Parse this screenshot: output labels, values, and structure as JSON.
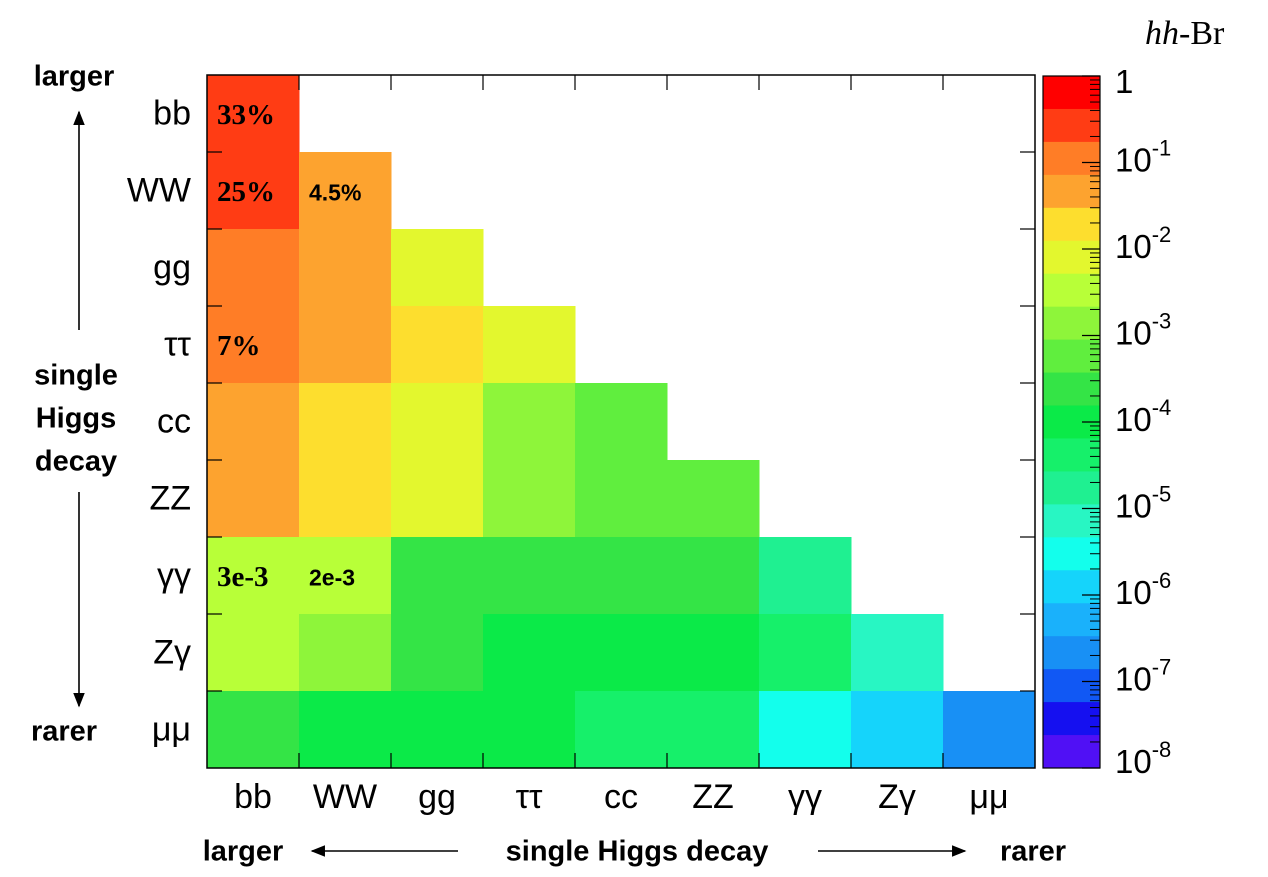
{
  "chart_data": {
    "type": "heatmap",
    "title": "",
    "colorbar_label": "hh-Br",
    "colorbar_label_parts": {
      "italic": "hh",
      "rest": "-Br"
    },
    "colorbar_scale": "log",
    "colorbar_range": [
      1e-08,
      1
    ],
    "colorbar_ticks": [
      {
        "value": 1,
        "base": "1",
        "exp": ""
      },
      {
        "value": 0.1,
        "base": "10",
        "exp": "-1"
      },
      {
        "value": 0.01,
        "base": "10",
        "exp": "-2"
      },
      {
        "value": 0.001,
        "base": "10",
        "exp": "-3"
      },
      {
        "value": 0.0001,
        "base": "10",
        "exp": "-4"
      },
      {
        "value": 1e-05,
        "base": "10",
        "exp": "-5"
      },
      {
        "value": 1e-06,
        "base": "10",
        "exp": "-6"
      },
      {
        "value": 1e-07,
        "base": "10",
        "exp": "-7"
      },
      {
        "value": 1e-08,
        "base": "10",
        "exp": "-8"
      }
    ],
    "x_categories": [
      "bb",
      "WW",
      "gg",
      "ττ",
      "cc",
      "ZZ",
      "γγ",
      "Zγ",
      "μμ"
    ],
    "y_categories": [
      "bb",
      "WW",
      "gg",
      "ττ",
      "cc",
      "ZZ",
      "γγ",
      "Zγ",
      "μμ"
    ],
    "values": [
      [
        0.33,
        null,
        null,
        null,
        null,
        null,
        null,
        null,
        null
      ],
      [
        0.25,
        0.045,
        null,
        null,
        null,
        null,
        null,
        null,
        null
      ],
      [
        0.075,
        0.03,
        0.005,
        null,
        null,
        null,
        null,
        null,
        null
      ],
      [
        0.07,
        0.028,
        0.012,
        0.004,
        null,
        null,
        null,
        null,
        null
      ],
      [
        0.03,
        0.011,
        0.006,
        0.0015,
        0.0006,
        null,
        null,
        null,
        null
      ],
      [
        0.03,
        0.012,
        0.0055,
        0.0014,
        0.0006,
        0.0004,
        null,
        null,
        null
      ],
      [
        0.003,
        0.002,
        0.0002,
        0.0002,
        0.00012,
        0.00012,
        7e-06,
        null,
        null
      ],
      [
        0.0025,
        0.0008,
        0.00018,
        9e-05,
        7e-05,
        6e-05,
        2.5e-05,
        3e-06,
        null
      ],
      [
        0.0002,
        7e-05,
        4e-05,
        4e-05,
        1.7e-05,
        1.7e-05,
        1.5e-06,
        8e-07,
        1e-07
      ]
    ],
    "cell_labels": [
      {
        "row": 0,
        "col": 0,
        "text": "33%",
        "style": "serif"
      },
      {
        "row": 1,
        "col": 0,
        "text": "25%",
        "style": "serif"
      },
      {
        "row": 1,
        "col": 1,
        "text": "4.5%",
        "style": "sans"
      },
      {
        "row": 3,
        "col": 0,
        "text": "7%",
        "style": "serif"
      },
      {
        "row": 6,
        "col": 0,
        "text": "3e-3",
        "style": "serif"
      },
      {
        "row": 6,
        "col": 1,
        "text": "2e-3",
        "style": "sans"
      }
    ],
    "y_axis_annotation": {
      "top": "larger",
      "middle": [
        "single",
        "Higgs",
        "decay"
      ],
      "bottom": "rarer"
    },
    "x_axis_annotation": {
      "left": "larger",
      "middle": "single Higgs decay",
      "right": "rarer"
    },
    "grid": false,
    "legend": "colorbar right"
  }
}
